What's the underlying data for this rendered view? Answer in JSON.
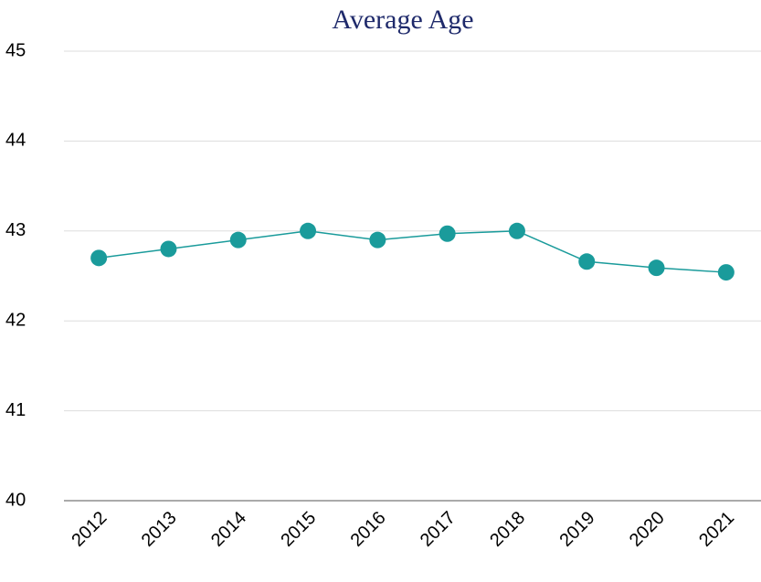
{
  "chart_data": {
    "type": "line",
    "title": "Average Age",
    "categories": [
      "2012",
      "2013",
      "2014",
      "2015",
      "2016",
      "2017",
      "2018",
      "2019",
      "2020",
      "2021"
    ],
    "series": [
      {
        "name": "Average Age",
        "color": "#1a9b9b",
        "values": [
          42.7,
          42.8,
          42.9,
          43.0,
          42.9,
          42.97,
          43.0,
          42.66,
          42.59,
          42.54
        ]
      }
    ],
    "ylim": [
      40,
      45
    ],
    "yticks": [
      40,
      41,
      42,
      43,
      44,
      45
    ],
    "grid": true
  }
}
